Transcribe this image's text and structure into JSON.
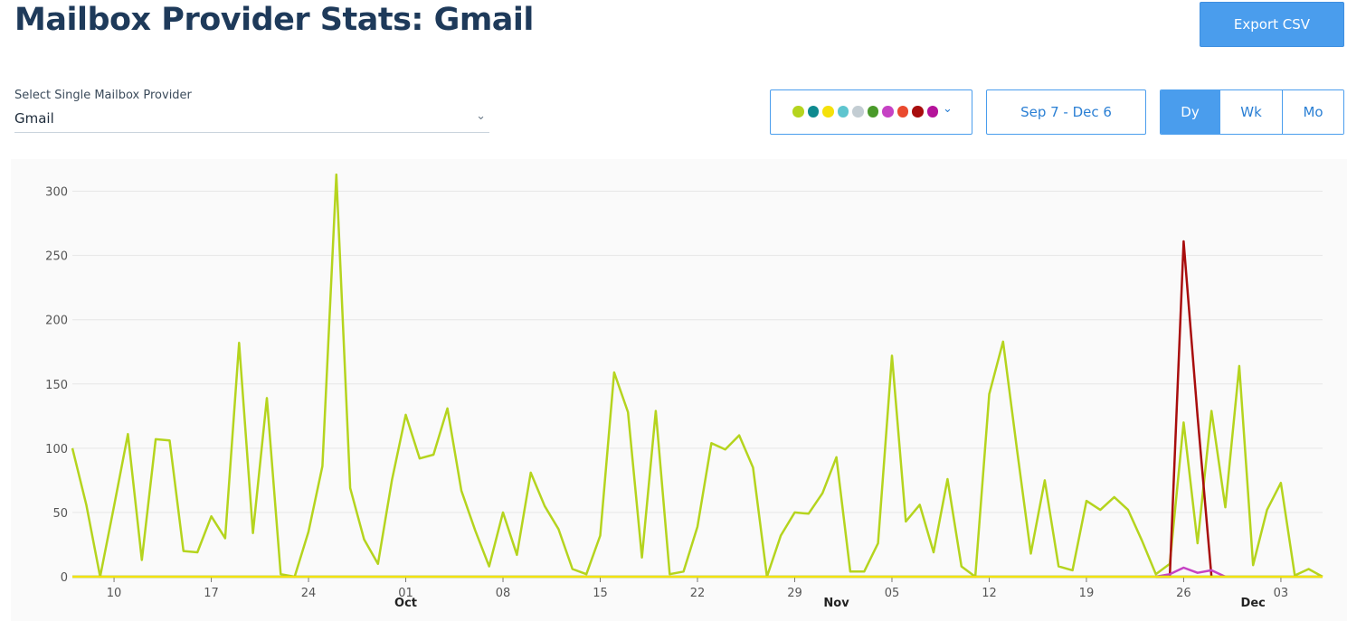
{
  "header": {
    "title": "Mailbox Provider Stats: Gmail",
    "export_label": "Export CSV"
  },
  "provider_select": {
    "label": "Select Single Mailbox Provider",
    "value": "Gmail",
    "chevron_icon": "chevron-down-icon"
  },
  "metric_picker": {
    "dot_colors": [
      "#b5d41e",
      "#0e8a8f",
      "#f5e10a",
      "#5ec5cf",
      "#c3cdd3",
      "#4a9a2a",
      "#c642c4",
      "#ea4a2e",
      "#a80d0d",
      "#b5139a"
    ],
    "chevron_icon": "chevron-down-icon"
  },
  "date_range": {
    "label": "Sep 7 - Dec 6"
  },
  "period": {
    "options": [
      "Dy",
      "Wk",
      "Mo"
    ],
    "active": "Dy"
  },
  "chart_data": {
    "type": "line",
    "x_start": "2025-09-07",
    "x_end": "2025-12-06",
    "ylim": [
      0,
      325
    ],
    "y_ticks": [
      0,
      50,
      100,
      150,
      200,
      250,
      300
    ],
    "grid": true,
    "day_ticks": [
      {
        "date": "2025-09-10",
        "label": "10"
      },
      {
        "date": "2025-09-17",
        "label": "17"
      },
      {
        "date": "2025-09-24",
        "label": "24"
      },
      {
        "date": "2025-10-01",
        "label": "01"
      },
      {
        "date": "2025-10-08",
        "label": "08"
      },
      {
        "date": "2025-10-15",
        "label": "15"
      },
      {
        "date": "2025-10-22",
        "label": "22"
      },
      {
        "date": "2025-10-29",
        "label": "29"
      },
      {
        "date": "2025-11-05",
        "label": "05"
      },
      {
        "date": "2025-11-12",
        "label": "12"
      },
      {
        "date": "2025-11-19",
        "label": "19"
      },
      {
        "date": "2025-11-26",
        "label": "26"
      },
      {
        "date": "2025-12-03",
        "label": "03"
      }
    ],
    "month_ticks": [
      {
        "date": "2025-10-01",
        "label": "Oct"
      },
      {
        "date": "2025-11-01",
        "label": "Nov"
      },
      {
        "date": "2025-12-01",
        "label": "Dec"
      }
    ],
    "series": [
      {
        "color": "#b5d41e",
        "x": [
          "2025-09-07",
          "2025-09-08",
          "2025-09-09",
          "2025-09-10",
          "2025-09-11",
          "2025-09-12",
          "2025-09-13",
          "2025-09-14",
          "2025-09-15",
          "2025-09-16",
          "2025-09-17",
          "2025-09-18",
          "2025-09-19",
          "2025-09-20",
          "2025-09-21",
          "2025-09-22",
          "2025-09-23",
          "2025-09-24",
          "2025-09-25",
          "2025-09-26",
          "2025-09-27",
          "2025-09-28",
          "2025-09-29",
          "2025-09-30",
          "2025-10-01",
          "2025-10-02",
          "2025-10-03",
          "2025-10-04",
          "2025-10-05",
          "2025-10-06",
          "2025-10-07",
          "2025-10-08",
          "2025-10-09",
          "2025-10-10",
          "2025-10-11",
          "2025-10-12",
          "2025-10-13",
          "2025-10-14",
          "2025-10-15",
          "2025-10-16",
          "2025-10-17",
          "2025-10-18",
          "2025-10-19",
          "2025-10-20",
          "2025-10-21",
          "2025-10-22",
          "2025-10-23",
          "2025-10-24",
          "2025-10-25",
          "2025-10-26",
          "2025-10-27",
          "2025-10-28",
          "2025-10-29",
          "2025-10-30",
          "2025-10-31",
          "2025-11-01",
          "2025-11-02",
          "2025-11-03",
          "2025-11-04",
          "2025-11-05",
          "2025-11-06",
          "2025-11-07",
          "2025-11-08",
          "2025-11-09",
          "2025-11-10",
          "2025-11-11",
          "2025-11-12",
          "2025-11-13",
          "2025-11-14",
          "2025-11-15",
          "2025-11-16",
          "2025-11-17",
          "2025-11-18",
          "2025-11-19",
          "2025-11-20",
          "2025-11-21",
          "2025-11-22",
          "2025-11-23",
          "2025-11-24",
          "2025-11-25",
          "2025-11-26",
          "2025-11-27",
          "2025-11-28",
          "2025-11-29",
          "2025-11-30",
          "2025-12-01",
          "2025-12-02",
          "2025-12-03",
          "2025-12-04",
          "2025-12-05",
          "2025-12-06"
        ],
        "y": [
          100,
          56,
          0,
          55,
          111,
          13,
          107,
          106,
          20,
          19,
          47,
          30,
          182,
          34,
          139,
          2,
          0,
          35,
          86,
          313,
          69,
          29,
          10,
          75,
          126,
          92,
          95,
          131,
          67,
          36,
          8,
          50,
          17,
          81,
          55,
          37,
          6,
          2,
          32,
          159,
          128,
          15,
          129,
          2,
          4,
          39,
          104,
          99,
          110,
          85,
          0,
          32,
          50,
          49,
          65,
          93,
          4,
          4,
          26,
          172,
          43,
          56,
          19,
          76,
          8,
          0,
          142,
          183,
          99,
          18,
          75,
          8,
          5,
          59,
          52,
          62,
          52,
          28,
          2,
          10,
          120,
          26,
          129,
          54,
          164,
          9,
          52,
          73,
          1,
          6,
          0
        ]
      },
      {
        "color": "#a80d0d",
        "x": [
          "2025-11-24",
          "2025-11-25",
          "2025-11-26",
          "2025-11-27",
          "2025-11-28"
        ],
        "y": [
          0,
          0,
          261,
          125,
          0
        ]
      },
      {
        "color": "#c642c4",
        "x": [
          "2025-11-24",
          "2025-11-25",
          "2025-11-26",
          "2025-11-27",
          "2025-11-28",
          "2025-11-29"
        ],
        "y": [
          0,
          2,
          7,
          3,
          5,
          0
        ]
      },
      {
        "color": "#0e8a8f",
        "x": [
          "2025-09-07",
          "2025-12-06"
        ],
        "y": [
          0,
          0
        ]
      },
      {
        "color": "#f5e10a",
        "x": [
          "2025-09-07",
          "2025-12-06"
        ],
        "y": [
          0,
          0
        ]
      }
    ]
  }
}
